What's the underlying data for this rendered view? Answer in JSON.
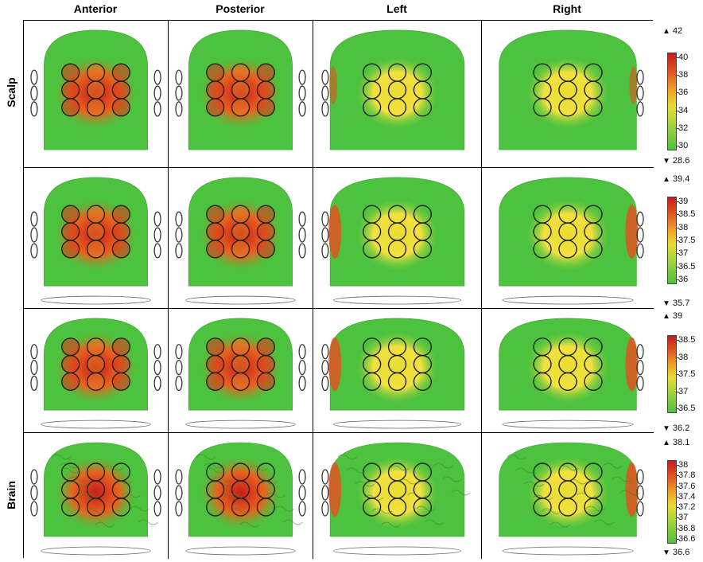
{
  "columns": [
    "Anterior",
    "Posterior",
    "Left",
    "Right"
  ],
  "rows": [
    {
      "label": "Scalp",
      "max": "42",
      "min": "28.6",
      "ticks": [
        "40",
        "38",
        "36",
        "34",
        "32",
        "30"
      ]
    },
    {
      "label": "",
      "max": "39.4",
      "min": "35.7",
      "ticks": [
        "39",
        "38.5",
        "38",
        "37.5",
        "37",
        "36.5",
        "36"
      ]
    },
    {
      "label": "",
      "max": "39",
      "min": "36.2",
      "ticks": [
        "38.5",
        "38",
        "37.5",
        "37",
        "36.5"
      ]
    },
    {
      "label": "Brain",
      "max": "38.1",
      "min": "36.6",
      "ticks": [
        "38",
        "37.8",
        "37.6",
        "37.4",
        "37.2",
        "37",
        "36.8",
        "36.6"
      ]
    }
  ],
  "colors": {
    "hot": "#c81c1c",
    "warm": "#f0a028",
    "mid": "#e8dc30",
    "cool": "#4cc23e"
  }
}
